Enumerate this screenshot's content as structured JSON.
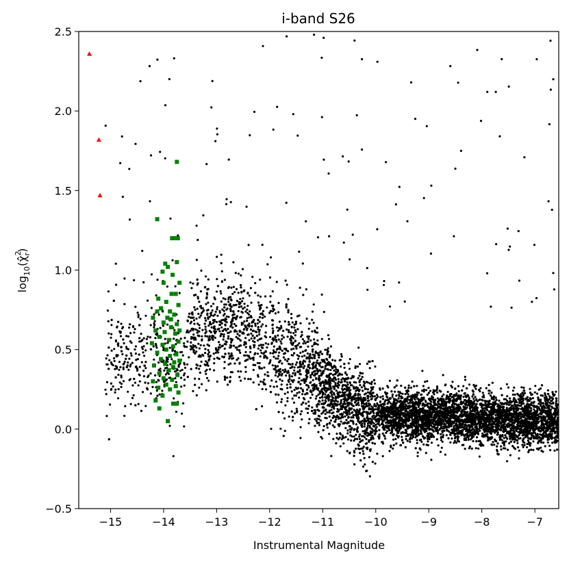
{
  "chart_data": {
    "type": "scatter",
    "title": "i-band S26",
    "xlabel": "Instrumental Magnitude",
    "ylabel_prefix": "log",
    "ylabel_sub": "10",
    "ylabel_body": "(χ̂",
    "ylabel_sup": "2",
    "ylabel_sub2": "r",
    "ylabel_close": ")",
    "xlim": [
      -15.6,
      -6.55
    ],
    "ylim": [
      -0.5,
      2.5
    ],
    "x_ticks": [
      -15,
      -14,
      -13,
      -12,
      -11,
      -10,
      -9,
      -8,
      -7
    ],
    "x_tick_labels": [
      "−15",
      "−14",
      "−13",
      "−12",
      "−11",
      "−10",
      "−9",
      "−8",
      "−7"
    ],
    "y_ticks": [
      -0.5,
      0.0,
      0.5,
      1.0,
      1.5,
      2.0,
      2.5
    ],
    "y_tick_labels": [
      "−0.5",
      "0.0",
      "0.5",
      "1.0",
      "1.5",
      "2.0",
      "2.5"
    ],
    "grid": false,
    "legend": "none",
    "colors": {
      "black_series": "#000000",
      "green_series": "#008000",
      "red_series": "#ff0000"
    },
    "series": [
      {
        "marker": "triangle",
        "color": "#ff0000",
        "points": [
          [
            -15.4,
            2.36
          ],
          [
            -15.22,
            1.82
          ],
          [
            -15.2,
            1.47
          ]
        ]
      },
      {
        "marker": "square",
        "color": "#008000",
        "points": [
          [
            -13.75,
            1.68
          ],
          [
            -14.12,
            1.32
          ],
          [
            -13.78,
            1.2
          ],
          [
            -13.73,
            1.2
          ],
          [
            -13.84,
            1.2
          ],
          [
            -13.97,
            1.04
          ],
          [
            -13.75,
            1.05
          ],
          [
            -13.92,
            1.02
          ],
          [
            -14.02,
            0.99
          ],
          [
            -13.83,
            0.97
          ],
          [
            -14.0,
            0.92
          ],
          [
            -13.7,
            0.92
          ],
          [
            -13.85,
            0.85
          ],
          [
            -13.77,
            0.85
          ],
          [
            -14.1,
            0.82
          ],
          [
            -13.95,
            0.8
          ],
          [
            -13.72,
            0.78
          ],
          [
            -14.05,
            0.76
          ],
          [
            -13.88,
            0.74
          ],
          [
            -13.8,
            0.72
          ],
          [
            -14.2,
            0.7
          ],
          [
            -13.93,
            0.7
          ],
          [
            -14.0,
            0.67
          ],
          [
            -13.75,
            0.66
          ],
          [
            -13.86,
            0.64
          ],
          [
            -14.15,
            0.62
          ],
          [
            -13.98,
            0.61
          ],
          [
            -13.78,
            0.6
          ],
          [
            -14.08,
            0.58
          ],
          [
            -13.9,
            0.56
          ],
          [
            -13.72,
            0.55
          ],
          [
            -14.22,
            0.54
          ],
          [
            -14.02,
            0.53
          ],
          [
            -13.82,
            0.52
          ],
          [
            -13.95,
            0.5
          ],
          [
            -14.12,
            0.48
          ],
          [
            -13.76,
            0.47
          ],
          [
            -13.88,
            0.46
          ],
          [
            -14.05,
            0.44
          ],
          [
            -13.7,
            0.43
          ],
          [
            -13.97,
            0.41
          ],
          [
            -14.18,
            0.4
          ],
          [
            -13.82,
            0.39
          ],
          [
            -13.9,
            0.37
          ],
          [
            -14.08,
            0.35
          ],
          [
            -13.74,
            0.34
          ],
          [
            -14.0,
            0.32
          ],
          [
            -13.84,
            0.31
          ],
          [
            -14.2,
            0.3
          ],
          [
            -13.95,
            0.28
          ],
          [
            -13.77,
            0.27
          ],
          [
            -14.1,
            0.26
          ],
          [
            -13.88,
            0.25
          ],
          [
            -13.72,
            0.23
          ],
          [
            -14.02,
            0.21
          ],
          [
            -14.15,
            0.18
          ],
          [
            -13.82,
            0.16
          ],
          [
            -13.75,
            0.16
          ],
          [
            -14.08,
            0.13
          ],
          [
            -13.92,
            0.05
          ],
          [
            -13.8,
            0.42
          ],
          [
            -13.86,
            0.69
          ],
          [
            -14.12,
            0.74
          ],
          [
            -13.7,
            0.62
          ]
        ]
      }
    ]
  }
}
